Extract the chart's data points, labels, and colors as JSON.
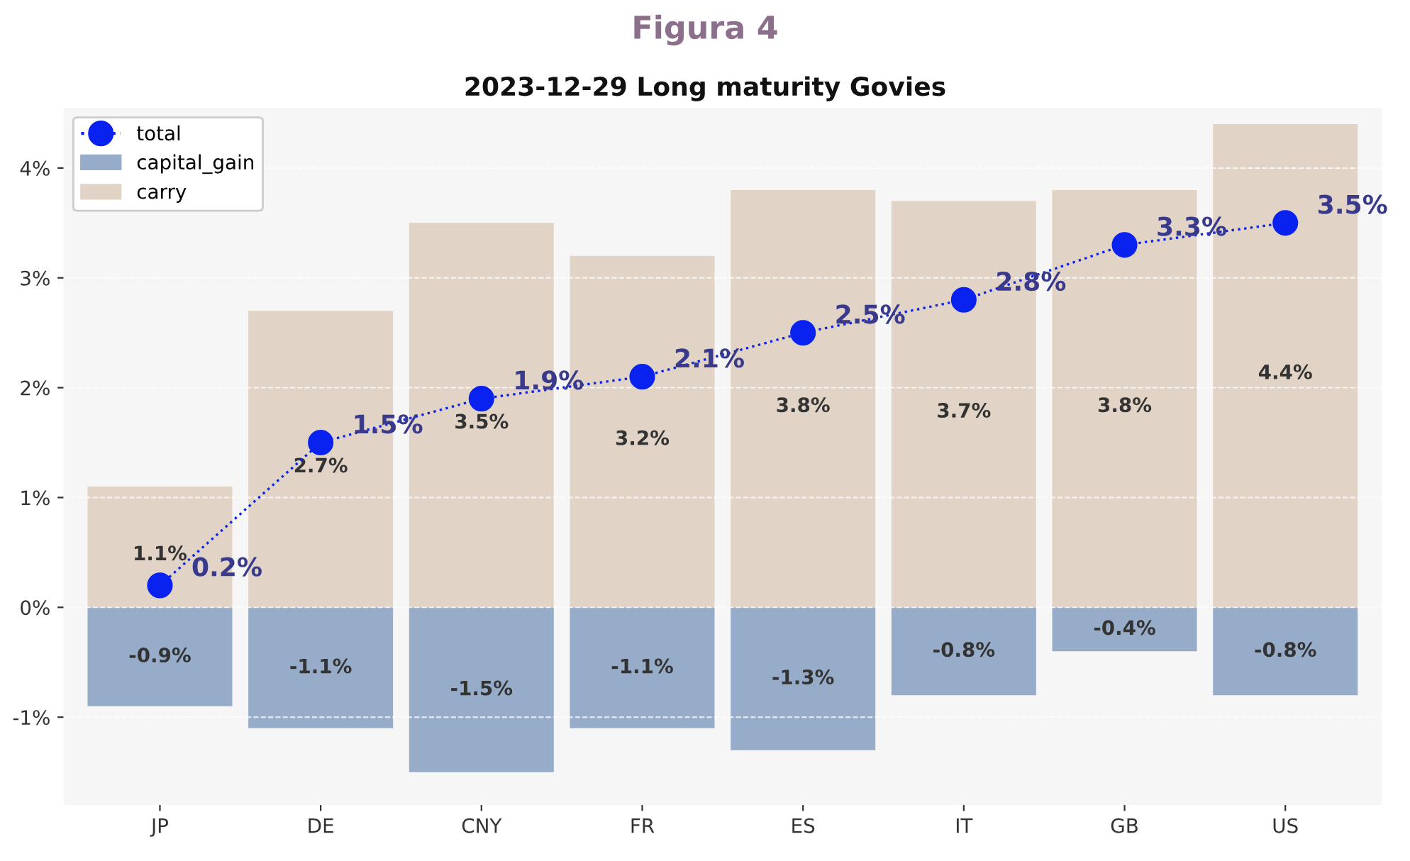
{
  "chart_data": {
    "type": "bar",
    "title": "Figura 4",
    "subtitle": "2023-12-29 Long maturity Govies",
    "categories": [
      "JP",
      "DE",
      "CNY",
      "FR",
      "ES",
      "IT",
      "GB",
      "US"
    ],
    "stacked": true,
    "series": [
      {
        "name": "total",
        "type": "line",
        "color": "#0a22f0",
        "marker": "circle",
        "line_style": "dotted",
        "values": [
          0.2,
          1.5,
          1.9,
          2.1,
          2.5,
          2.8,
          3.3,
          3.5
        ],
        "value_labels": [
          "0.2%",
          "1.5%",
          "1.9%",
          "2.1%",
          "2.5%",
          "2.8%",
          "3.3%",
          "3.5%"
        ]
      },
      {
        "name": "capital_gain",
        "color": "#97acc8",
        "values": [
          -0.9,
          -1.1,
          -1.5,
          -1.1,
          -1.3,
          -0.8,
          -0.4,
          -0.8
        ],
        "value_labels": [
          "-0.9%",
          "-1.1%",
          "-1.5%",
          "-1.1%",
          "-1.3%",
          "-0.8%",
          "-0.4%",
          "-0.8%"
        ]
      },
      {
        "name": "carry",
        "color": "#e1d4c6",
        "values": [
          1.1,
          2.7,
          3.5,
          3.2,
          3.8,
          3.7,
          3.8,
          4.4
        ],
        "value_labels": [
          "1.1%",
          "2.7%",
          "3.5%",
          "3.2%",
          "3.8%",
          "3.7%",
          "3.8%",
          "4.4%"
        ]
      }
    ],
    "ylim": [
      -1.8,
      4.55
    ],
    "yticks": [
      {
        "value": -1,
        "label": "-1%"
      },
      {
        "value": 0,
        "label": "0%"
      },
      {
        "value": 1,
        "label": "1%"
      },
      {
        "value": 2,
        "label": "2%"
      },
      {
        "value": 3,
        "label": "3%"
      },
      {
        "value": 4,
        "label": "4%"
      }
    ],
    "grid": "y",
    "legend": "top left"
  }
}
